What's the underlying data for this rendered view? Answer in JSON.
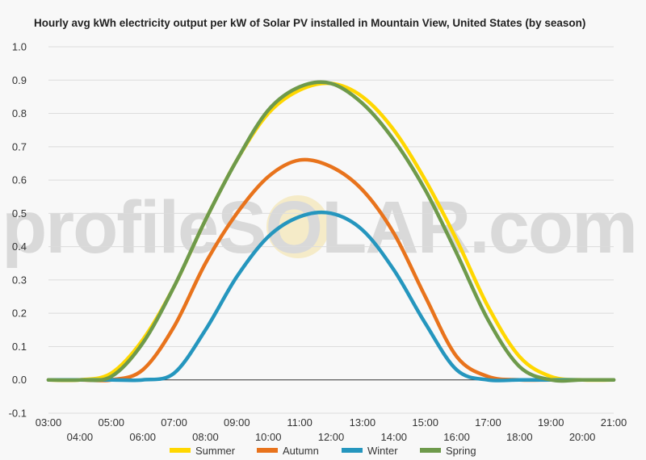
{
  "chart_data": {
    "type": "line",
    "title": "Hourly avg kWh electricity output per kW of Solar PV installed in Mountain View, United States (by season)",
    "watermark": "profileSOLAR.com",
    "xlabel": "",
    "ylabel": "",
    "ylim": [
      -0.1,
      1.0
    ],
    "yticks": [
      "-0.1",
      "0.0",
      "0.1",
      "0.2",
      "0.3",
      "0.4",
      "0.5",
      "0.6",
      "0.7",
      "0.8",
      "0.9",
      "1.0"
    ],
    "xticks": [
      "03:00",
      "04:00",
      "05:00",
      "06:00",
      "07:00",
      "08:00",
      "09:00",
      "10:00",
      "11:00",
      "12:00",
      "13:00",
      "14:00",
      "15:00",
      "16:00",
      "17:00",
      "18:00",
      "19:00",
      "20:00",
      "21:00"
    ],
    "x_hours": [
      3,
      4,
      5,
      6,
      7,
      8,
      9,
      10,
      11,
      12,
      13,
      14,
      15,
      16,
      17,
      18,
      19,
      20,
      21
    ],
    "grid": true,
    "legend_position": "bottom",
    "series": [
      {
        "name": "Summer",
        "color": "#ffd700",
        "values": [
          0.0,
          0.0,
          0.02,
          0.12,
          0.28,
          0.48,
          0.66,
          0.8,
          0.87,
          0.89,
          0.85,
          0.75,
          0.6,
          0.42,
          0.22,
          0.07,
          0.01,
          0.0,
          0.0
        ]
      },
      {
        "name": "Autumn",
        "color": "#e8731c",
        "values": [
          0.0,
          0.0,
          0.0,
          0.03,
          0.16,
          0.35,
          0.5,
          0.61,
          0.66,
          0.64,
          0.57,
          0.44,
          0.25,
          0.07,
          0.01,
          0.0,
          0.0,
          0.0,
          0.0
        ]
      },
      {
        "name": "Winter",
        "color": "#2596be",
        "values": [
          0.0,
          0.0,
          0.0,
          0.0,
          0.02,
          0.15,
          0.31,
          0.43,
          0.49,
          0.5,
          0.45,
          0.33,
          0.17,
          0.03,
          0.0,
          0.0,
          0.0,
          0.0,
          0.0
        ]
      },
      {
        "name": "Spring",
        "color": "#6e9a4b",
        "values": [
          0.0,
          0.0,
          0.01,
          0.11,
          0.28,
          0.48,
          0.66,
          0.81,
          0.88,
          0.89,
          0.83,
          0.72,
          0.57,
          0.38,
          0.18,
          0.04,
          0.0,
          0.0,
          0.0
        ]
      }
    ]
  }
}
